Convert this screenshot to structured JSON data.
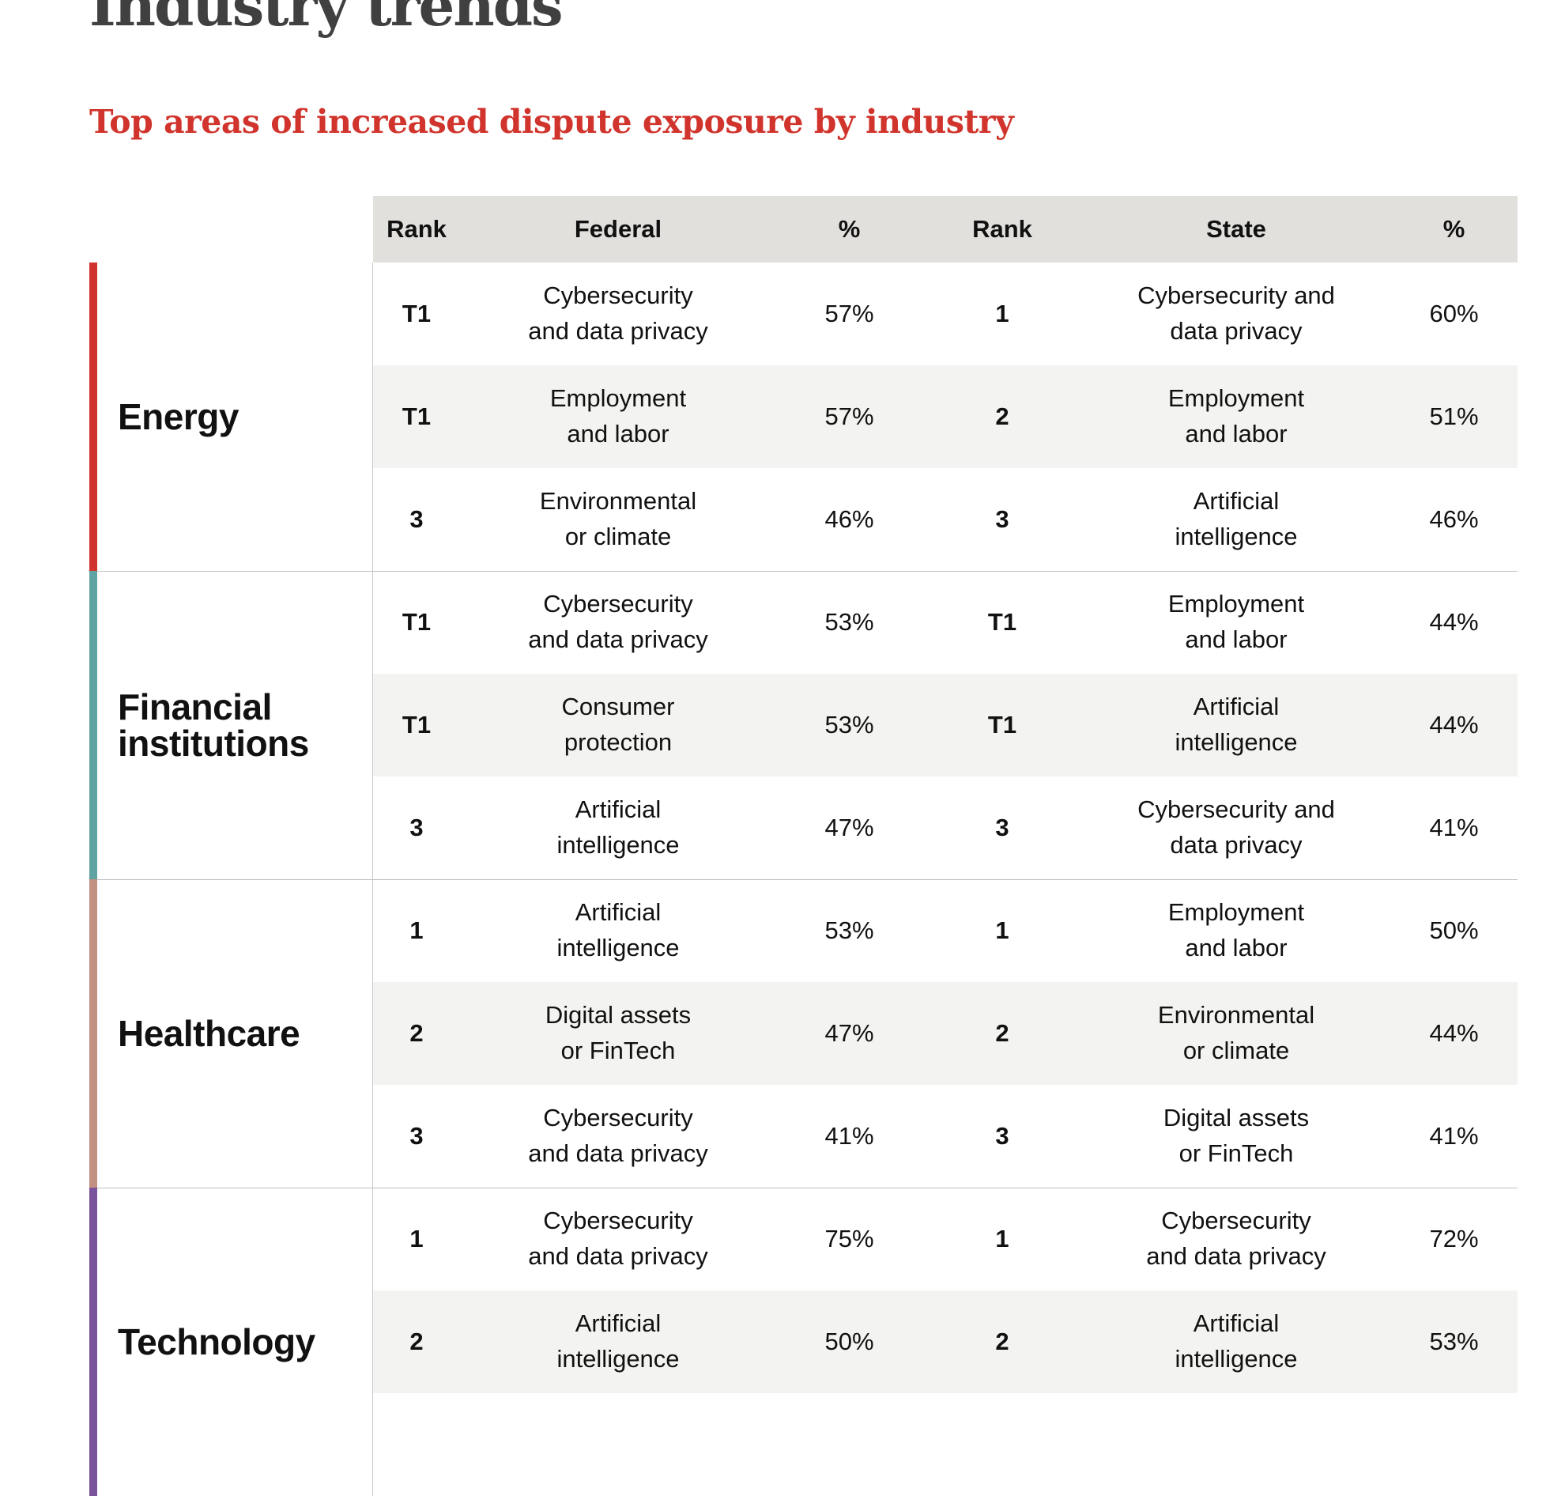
{
  "page": {
    "title": "Industry trends",
    "subtitle": "Top areas of increased dispute exposure by industry"
  },
  "colors": {
    "title": "#404040",
    "subtitle": "#d0342c",
    "header_bg": "#e1e0dc",
    "alt_row_bg": "#f3f3f1",
    "energy": "#d0342c",
    "financial_institutions": "#5fa4a3",
    "healthcare": "#c29080",
    "technology": "#7b539c"
  },
  "table": {
    "headers": {
      "rank_federal": "Rank",
      "federal": "Federal",
      "pct_federal": "%",
      "rank_state": "Rank",
      "state": "State",
      "pct_state": "%"
    },
    "groups": [
      {
        "industry": "Energy",
        "rows": [
          {
            "fed_rank": "T1",
            "fed_area": "Cybersecurity\nand data privacy",
            "fed_pct": "57%",
            "state_rank": "1",
            "state_area": "Cybersecurity and\ndata privacy",
            "state_pct": "60%"
          },
          {
            "fed_rank": "T1",
            "fed_area": "Employment\nand labor",
            "fed_pct": "57%",
            "state_rank": "2",
            "state_area": "Employment\nand labor",
            "state_pct": "51%"
          },
          {
            "fed_rank": "3",
            "fed_area": "Environmental\nor climate",
            "fed_pct": "46%",
            "state_rank": "3",
            "state_area": "Artificial\nintelligence",
            "state_pct": "46%"
          }
        ]
      },
      {
        "industry": "Financial\ninstitutions",
        "rows": [
          {
            "fed_rank": "T1",
            "fed_area": "Cybersecurity\nand data privacy",
            "fed_pct": "53%",
            "state_rank": "T1",
            "state_area": "Employment\nand labor",
            "state_pct": "44%"
          },
          {
            "fed_rank": "T1",
            "fed_area": "Consumer\nprotection",
            "fed_pct": "53%",
            "state_rank": "T1",
            "state_area": "Artificial\nintelligence",
            "state_pct": "44%"
          },
          {
            "fed_rank": "3",
            "fed_area": "Artificial\nintelligence",
            "fed_pct": "47%",
            "state_rank": "3",
            "state_area": "Cybersecurity and\ndata privacy",
            "state_pct": "41%"
          }
        ]
      },
      {
        "industry": "Healthcare",
        "rows": [
          {
            "fed_rank": "1",
            "fed_area": "Artificial\nintelligence",
            "fed_pct": "53%",
            "state_rank": "1",
            "state_area": "Employment\nand labor",
            "state_pct": "50%"
          },
          {
            "fed_rank": "2",
            "fed_area": "Digital assets\nor FinTech",
            "fed_pct": "47%",
            "state_rank": "2",
            "state_area": "Environmental\nor climate",
            "state_pct": "44%"
          },
          {
            "fed_rank": "3",
            "fed_area": "Cybersecurity\nand data privacy",
            "fed_pct": "41%",
            "state_rank": "3",
            "state_area": "Digital assets\nor FinTech",
            "state_pct": "41%"
          }
        ]
      },
      {
        "industry": "Technology",
        "rows": [
          {
            "fed_rank": "1",
            "fed_area": "Cybersecurity\nand data privacy",
            "fed_pct": "75%",
            "state_rank": "1",
            "state_area": "Cybersecurity\nand data privacy",
            "state_pct": "72%"
          },
          {
            "fed_rank": "2",
            "fed_area": "Artificial\nintelligence",
            "fed_pct": "50%",
            "state_rank": "2",
            "state_area": "Artificial\nintelligence",
            "state_pct": "53%"
          }
        ]
      }
    ]
  }
}
